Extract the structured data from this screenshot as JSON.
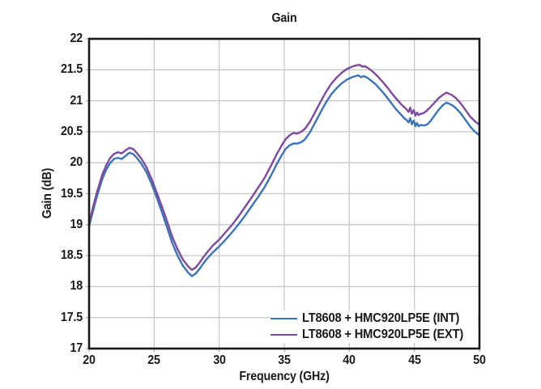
{
  "chart_data": {
    "type": "line",
    "title": "Gain",
    "xlabel": "Frequency (GHz)",
    "ylabel": "Gain (dB)",
    "xlim": [
      20,
      50
    ],
    "ylim": [
      17,
      22
    ],
    "xticks": [
      20,
      25,
      30,
      35,
      40,
      45,
      50
    ],
    "yticks": [
      17,
      17.5,
      18,
      18.5,
      19,
      19.5,
      20,
      20.5,
      21,
      21.5,
      22
    ],
    "grid": true,
    "legend_position": "lower right",
    "series": [
      {
        "name": "LT8608 + HMC920LP5E (INT)",
        "color": "#3a73b8",
        "points": [
          [
            20.0,
            18.97
          ],
          [
            20.3,
            19.22
          ],
          [
            20.6,
            19.45
          ],
          [
            21.0,
            19.73
          ],
          [
            21.3,
            19.88
          ],
          [
            21.6,
            19.99
          ],
          [
            21.9,
            20.06
          ],
          [
            22.2,
            20.08
          ],
          [
            22.5,
            20.06
          ],
          [
            22.8,
            20.11
          ],
          [
            23.1,
            20.16
          ],
          [
            23.4,
            20.14
          ],
          [
            23.7,
            20.07
          ],
          [
            24.0,
            19.99
          ],
          [
            24.4,
            19.85
          ],
          [
            24.8,
            19.66
          ],
          [
            25.2,
            19.44
          ],
          [
            25.6,
            19.2
          ],
          [
            26.0,
            18.95
          ],
          [
            26.4,
            18.7
          ],
          [
            26.8,
            18.5
          ],
          [
            27.2,
            18.34
          ],
          [
            27.6,
            18.23
          ],
          [
            27.9,
            18.17
          ],
          [
            28.2,
            18.21
          ],
          [
            28.5,
            18.29
          ],
          [
            28.8,
            18.38
          ],
          [
            29.1,
            18.46
          ],
          [
            29.5,
            18.55
          ],
          [
            30.0,
            18.65
          ],
          [
            30.5,
            18.76
          ],
          [
            31.0,
            18.88
          ],
          [
            31.5,
            19.01
          ],
          [
            32.0,
            19.15
          ],
          [
            32.5,
            19.3
          ],
          [
            33.0,
            19.45
          ],
          [
            33.5,
            19.61
          ],
          [
            34.0,
            19.8
          ],
          [
            34.4,
            19.97
          ],
          [
            34.8,
            20.12
          ],
          [
            35.1,
            20.22
          ],
          [
            35.4,
            20.28
          ],
          [
            35.7,
            20.31
          ],
          [
            36.0,
            20.31
          ],
          [
            36.3,
            20.33
          ],
          [
            36.6,
            20.38
          ],
          [
            37.0,
            20.5
          ],
          [
            37.4,
            20.66
          ],
          [
            37.8,
            20.82
          ],
          [
            38.2,
            20.97
          ],
          [
            38.6,
            21.1
          ],
          [
            39.0,
            21.2
          ],
          [
            39.4,
            21.28
          ],
          [
            39.8,
            21.34
          ],
          [
            40.2,
            21.38
          ],
          [
            40.5,
            21.4
          ],
          [
            40.7,
            21.41
          ],
          [
            40.9,
            21.38
          ],
          [
            41.1,
            21.4
          ],
          [
            41.4,
            21.37
          ],
          [
            41.7,
            21.32
          ],
          [
            42.0,
            21.27
          ],
          [
            42.4,
            21.18
          ],
          [
            42.8,
            21.08
          ],
          [
            43.2,
            20.97
          ],
          [
            43.6,
            20.86
          ],
          [
            44.0,
            20.77
          ],
          [
            44.2,
            20.72
          ],
          [
            44.4,
            20.69
          ],
          [
            44.55,
            20.65
          ],
          [
            44.68,
            20.72
          ],
          [
            44.8,
            20.62
          ],
          [
            44.95,
            20.68
          ],
          [
            45.08,
            20.59
          ],
          [
            45.2,
            20.64
          ],
          [
            45.32,
            20.59
          ],
          [
            45.5,
            20.61
          ],
          [
            45.75,
            20.6
          ],
          [
            46.0,
            20.62
          ],
          [
            46.2,
            20.66
          ],
          [
            46.5,
            20.75
          ],
          [
            46.85,
            20.85
          ],
          [
            47.15,
            20.92
          ],
          [
            47.45,
            20.97
          ],
          [
            47.6,
            20.96
          ],
          [
            47.9,
            20.93
          ],
          [
            48.2,
            20.88
          ],
          [
            48.55,
            20.8
          ],
          [
            48.9,
            20.7
          ],
          [
            49.3,
            20.58
          ],
          [
            49.65,
            20.5
          ],
          [
            50.0,
            20.44
          ]
        ]
      },
      {
        "name": "LT8608 + HMC920LP5E (EXT)",
        "color": "#7d4a9e",
        "points": [
          [
            20.0,
            19.02
          ],
          [
            20.3,
            19.28
          ],
          [
            20.6,
            19.52
          ],
          [
            21.0,
            19.8
          ],
          [
            21.3,
            19.95
          ],
          [
            21.6,
            20.07
          ],
          [
            21.9,
            20.14
          ],
          [
            22.2,
            20.17
          ],
          [
            22.5,
            20.15
          ],
          [
            22.8,
            20.2
          ],
          [
            23.1,
            20.24
          ],
          [
            23.4,
            20.22
          ],
          [
            23.7,
            20.15
          ],
          [
            24.0,
            20.07
          ],
          [
            24.4,
            19.93
          ],
          [
            24.8,
            19.74
          ],
          [
            25.2,
            19.52
          ],
          [
            25.6,
            19.29
          ],
          [
            26.0,
            19.05
          ],
          [
            26.4,
            18.8
          ],
          [
            26.8,
            18.6
          ],
          [
            27.2,
            18.44
          ],
          [
            27.6,
            18.33
          ],
          [
            27.9,
            18.27
          ],
          [
            28.2,
            18.31
          ],
          [
            28.5,
            18.39
          ],
          [
            28.8,
            18.48
          ],
          [
            29.1,
            18.56
          ],
          [
            29.5,
            18.66
          ],
          [
            30.0,
            18.76
          ],
          [
            30.5,
            18.88
          ],
          [
            31.0,
            19.0
          ],
          [
            31.5,
            19.14
          ],
          [
            32.0,
            19.29
          ],
          [
            32.5,
            19.44
          ],
          [
            33.0,
            19.6
          ],
          [
            33.5,
            19.76
          ],
          [
            34.0,
            19.96
          ],
          [
            34.4,
            20.13
          ],
          [
            34.8,
            20.28
          ],
          [
            35.1,
            20.38
          ],
          [
            35.4,
            20.44
          ],
          [
            35.7,
            20.48
          ],
          [
            36.0,
            20.47
          ],
          [
            36.3,
            20.5
          ],
          [
            36.6,
            20.55
          ],
          [
            37.0,
            20.67
          ],
          [
            37.4,
            20.83
          ],
          [
            37.8,
            20.99
          ],
          [
            38.2,
            21.14
          ],
          [
            38.6,
            21.27
          ],
          [
            39.0,
            21.37
          ],
          [
            39.4,
            21.45
          ],
          [
            39.8,
            21.51
          ],
          [
            40.2,
            21.55
          ],
          [
            40.5,
            21.57
          ],
          [
            40.8,
            21.58
          ],
          [
            41.0,
            21.55
          ],
          [
            41.2,
            21.56
          ],
          [
            41.5,
            21.52
          ],
          [
            41.8,
            21.47
          ],
          [
            42.1,
            21.41
          ],
          [
            42.5,
            21.32
          ],
          [
            42.9,
            21.22
          ],
          [
            43.3,
            21.11
          ],
          [
            43.7,
            21.01
          ],
          [
            44.0,
            20.94
          ],
          [
            44.2,
            20.9
          ],
          [
            44.4,
            20.86
          ],
          [
            44.55,
            20.82
          ],
          [
            44.68,
            20.89
          ],
          [
            44.8,
            20.79
          ],
          [
            44.95,
            20.85
          ],
          [
            45.08,
            20.76
          ],
          [
            45.2,
            20.81
          ],
          [
            45.32,
            20.77
          ],
          [
            45.5,
            20.79
          ],
          [
            45.7,
            20.8
          ],
          [
            45.9,
            20.83
          ],
          [
            46.15,
            20.88
          ],
          [
            46.5,
            20.96
          ],
          [
            46.85,
            21.04
          ],
          [
            47.15,
            21.09
          ],
          [
            47.45,
            21.13
          ],
          [
            47.6,
            21.12
          ],
          [
            47.9,
            21.09
          ],
          [
            48.2,
            21.04
          ],
          [
            48.55,
            20.96
          ],
          [
            48.9,
            20.86
          ],
          [
            49.3,
            20.74
          ],
          [
            49.65,
            20.67
          ],
          [
            50.0,
            20.61
          ]
        ]
      }
    ]
  },
  "colors": {
    "grid": "#c8c8c8",
    "axis": "#1a1a1a",
    "text": "#191919",
    "background": "#ffffff"
  }
}
